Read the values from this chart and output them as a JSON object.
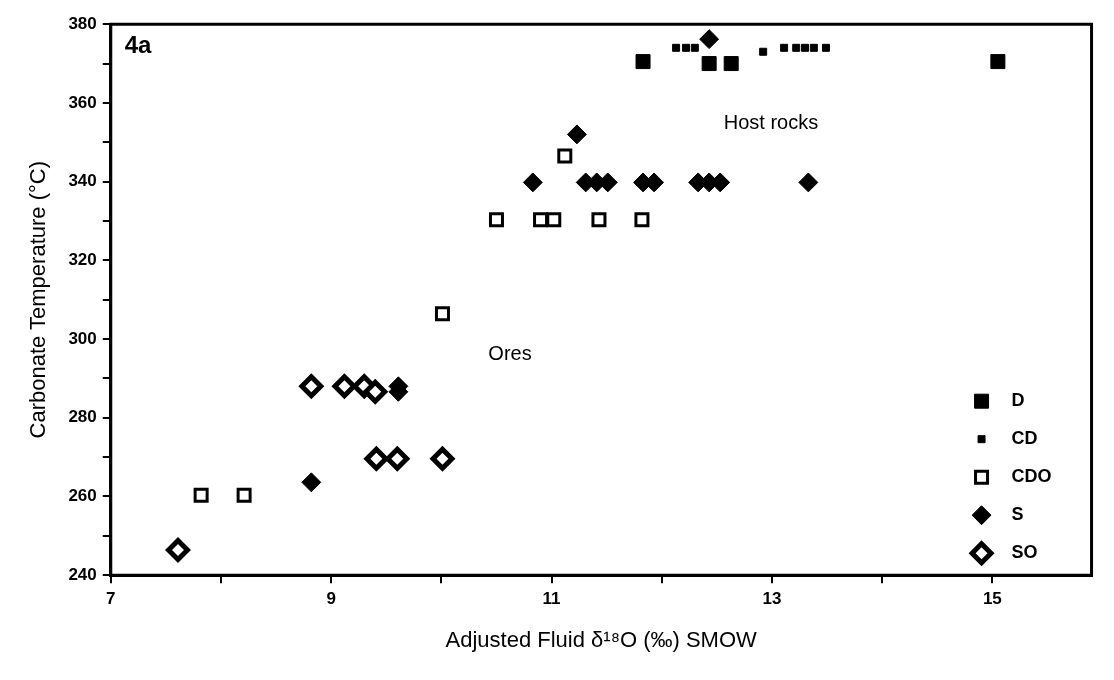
{
  "chart_data": {
    "type": "scatter",
    "xlabel": "Adjusted Fluid δ¹⁸O (‰) SMOW",
    "ylabel": "Carbonate Temperature (°C)",
    "xlim": [
      7,
      15.9
    ],
    "xticks": [
      7,
      {
        "value": 8,
        "label": null
      },
      9,
      {
        "value": 10,
        "label": null
      },
      11,
      {
        "value": 12,
        "label": null
      },
      13,
      {
        "value": 14,
        "label": null
      },
      15
    ],
    "ylim": [
      240,
      380
    ],
    "yticks": [
      240,
      {
        "value": 250,
        "label": null
      },
      260,
      {
        "value": 270,
        "label": null
      },
      280,
      {
        "value": 290,
        "label": null
      },
      300,
      {
        "value": 310,
        "label": null
      },
      320,
      {
        "value": 330,
        "label": null
      },
      340,
      {
        "value": 350,
        "label": null
      },
      360,
      {
        "value": 370,
        "label": null
      },
      380
    ],
    "grid": false,
    "legend": "bottom right",
    "annotations": [
      "4a",
      "Host rocks",
      "Ores"
    ],
    "series": [
      {
        "name": "D",
        "color": "#000000",
        "marker": "square",
        "x": [
          11.83,
          12.43,
          12.63,
          15.05
        ],
        "values": [
          370.5,
          370,
          370,
          370.5
        ]
      },
      {
        "name": "CD",
        "color": "#000000",
        "marker": "square",
        "x": [
          12.13,
          12.22,
          12.3,
          12.92,
          13.11,
          13.22,
          13.3,
          13.38,
          13.49
        ],
        "values": [
          374,
          374,
          374,
          373,
          374,
          374,
          374,
          374,
          374
        ]
      },
      {
        "name": "CDO",
        "color": "#000000",
        "marker": "square",
        "x": [
          7.82,
          8.21,
          10.01,
          10.5,
          10.9,
          11.02,
          11.43,
          11.82,
          11.12
        ],
        "values": [
          260.3,
          260.3,
          306.4,
          330.3,
          330.3,
          330.3,
          330.3,
          330.3,
          346.5
        ]
      },
      {
        "name": "S",
        "color": "#000000",
        "marker": "diamond",
        "x": [
          8.82,
          9.61,
          9.61,
          10.83,
          11.31,
          11.41,
          11.51,
          11.83,
          11.93,
          12.33,
          12.43,
          12.53,
          13.33,
          11.23,
          12.43
        ],
        "values": [
          263.6,
          288,
          286.6,
          339.8,
          339.8,
          339.8,
          339.8,
          339.8,
          339.8,
          339.8,
          339.8,
          339.8,
          339.8,
          352,
          376.2
        ]
      },
      {
        "name": "SO",
        "color": "#000000",
        "marker": "diamond",
        "x": [
          7.61,
          8.82,
          9.12,
          9.3,
          9.4,
          9.41,
          9.6,
          10.01
        ],
        "values": [
          246.4,
          288,
          288,
          288,
          286.6,
          269.6,
          269.6,
          269.6
        ]
      }
    ]
  }
}
